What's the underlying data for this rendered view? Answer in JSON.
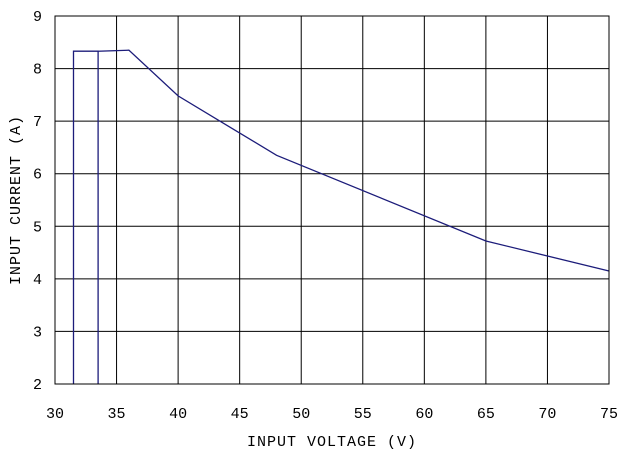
{
  "chart_data": {
    "type": "line",
    "title": "",
    "xlabel": "INPUT VOLTAGE (V)",
    "ylabel": "INPUT CURRENT (A)",
    "xlim": [
      30,
      75
    ],
    "ylim": [
      2,
      9
    ],
    "xticks": [
      "30",
      "35",
      "40",
      "45",
      "50",
      "55",
      "60",
      "65",
      "70",
      "75"
    ],
    "yticks": [
      "2",
      "3",
      "4",
      "5",
      "6",
      "7",
      "8",
      "9"
    ],
    "grid": true,
    "series": [
      {
        "color": "#1c1c7a",
        "points": [
          [
            31.5,
            2
          ],
          [
            31.5,
            8.33
          ],
          [
            33.5,
            8.33
          ],
          [
            33.5,
            2
          ],
          [
            33.5,
            8.33
          ],
          [
            36,
            8.35
          ],
          [
            40,
            7.48
          ],
          [
            48,
            6.35
          ],
          [
            65,
            4.72
          ],
          [
            75,
            4.15
          ]
        ]
      }
    ]
  }
}
